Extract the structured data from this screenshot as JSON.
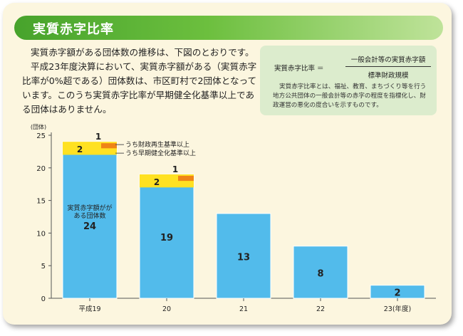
{
  "title": "実質赤字比率",
  "intro": {
    "paragraph1": "実質赤字額がある団体数の推移は、下図のとおりです。",
    "paragraph2": "平成23年度決算において、実質赤字額がある（実質赤字比率が0%超である）団体数は、市区町村で2団体となっています。このうち実質赤字比率が早期健全化基準以上である団体はありません。"
  },
  "definition": {
    "lhs": "実質赤字比率 ＝",
    "numerator": "一般会計等の実質赤字額",
    "denominator": "標準財政規模",
    "text": "実質赤字比率とは、福祉、教育、まちづくり等を行う地方公共団体の一般会計等の赤字の程度を指標化し、財政運営の悪化の度合いを示すものです。"
  },
  "colors": {
    "total": "#52bbeb",
    "early": "#ffe122",
    "rebuild": "#ef8416"
  },
  "chart_data": {
    "type": "bar",
    "unit": "(団体)",
    "categories": [
      "平成19",
      "20",
      "21",
      "22",
      "23(年度)"
    ],
    "series": [
      {
        "name": "実質赤字額がある団体数",
        "values": [
          24,
          19,
          13,
          8,
          2
        ]
      },
      {
        "name": "うち早期健全化基準以上",
        "values": [
          2,
          2,
          0,
          0,
          0
        ]
      },
      {
        "name": "うち財政再生基準以上",
        "values": [
          1,
          1,
          0,
          0,
          0
        ]
      }
    ],
    "ylim": [
      0,
      25
    ],
    "yticks": [
      0,
      5,
      10,
      15,
      20,
      25
    ],
    "bar_inner_label": "実質赤字額がある団体数",
    "legend_labels": [
      "うち財政再生基準以上",
      "うち早期健全化基準以上"
    ],
    "grid": false
  }
}
